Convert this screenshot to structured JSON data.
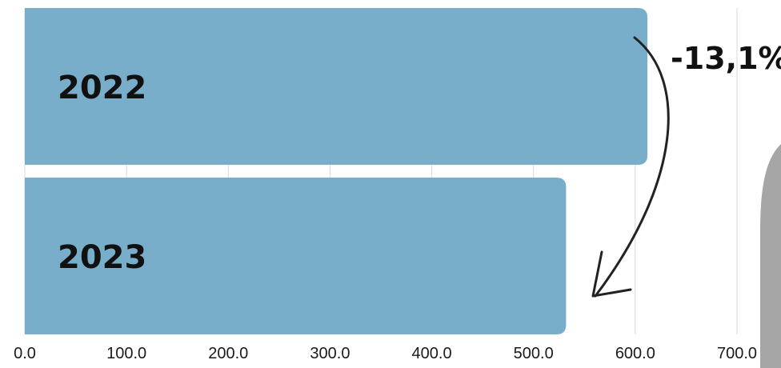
{
  "chart_data": {
    "type": "bar",
    "orientation": "horizontal",
    "categories": [
      "2022",
      "2023"
    ],
    "values": [
      612,
      532
    ],
    "xlim": [
      0,
      700
    ],
    "x_ticks": [
      "0.0",
      "100.0",
      "200.0",
      "300.0",
      "400.0",
      "500.0",
      "600.0",
      "700.0"
    ],
    "grid": true,
    "bar_color": "#79aecb",
    "annotation": "-13,1%"
  }
}
